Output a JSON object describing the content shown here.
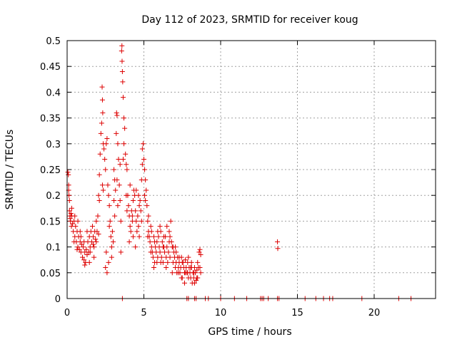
{
  "chart_data": {
    "type": "scatter",
    "title": "Day 112 of 2023, SRMTID for receiver koug",
    "xlabel": "GPS time / hours",
    "ylabel": "SRMTID / TECUs",
    "xlim": [
      0,
      24
    ],
    "ylim": [
      0,
      0.5
    ],
    "grid": true,
    "marker": "+",
    "color": "#dd0000",
    "x_ticks": [
      0,
      5,
      10,
      15,
      20
    ],
    "x_tick_labels": [
      "0",
      "5",
      "10",
      "15",
      "20"
    ],
    "y_ticks": [
      0,
      0.05,
      0.1,
      0.15,
      0.2,
      0.25,
      0.3,
      0.35,
      0.4,
      0.45,
      0.5
    ],
    "y_tick_labels": [
      "0",
      "0.05",
      "0.1",
      "0.15",
      "0.2",
      "0.25",
      "0.3",
      "0.35",
      "0.4",
      "0.45",
      "0.5"
    ],
    "series": [
      {
        "name": "SRMTID",
        "points": [
          [
            0.05,
            0.245
          ],
          [
            0.08,
            0.24
          ],
          [
            0.1,
            0.22
          ],
          [
            0.12,
            0.2
          ],
          [
            0.15,
            0.17
          ],
          [
            0.18,
            0.16
          ],
          [
            0.2,
            0.155
          ],
          [
            0.22,
            0.15
          ],
          [
            0.25,
            0.165
          ],
          [
            0.28,
            0.14
          ],
          [
            0.3,
            0.16
          ],
          [
            0.35,
            0.145
          ],
          [
            0.4,
            0.13
          ],
          [
            0.45,
            0.15
          ],
          [
            0.5,
            0.12
          ],
          [
            0.55,
            0.14
          ],
          [
            0.6,
            0.11
          ],
          [
            0.65,
            0.13
          ],
          [
            0.7,
            0.1
          ],
          [
            0.75,
            0.12
          ],
          [
            0.8,
            0.095
          ],
          [
            0.85,
            0.11
          ],
          [
            0.9,
            0.09
          ],
          [
            0.95,
            0.105
          ],
          [
            1.0,
            0.08
          ],
          [
            1.05,
            0.1
          ],
          [
            1.1,
            0.075
          ],
          [
            1.15,
            0.09
          ],
          [
            1.2,
            0.07
          ],
          [
            1.25,
            0.095
          ],
          [
            1.3,
            0.085
          ],
          [
            1.35,
            0.11
          ],
          [
            1.4,
            0.09
          ],
          [
            1.45,
            0.12
          ],
          [
            1.5,
            0.1
          ],
          [
            1.55,
            0.13
          ],
          [
            1.6,
            0.11
          ],
          [
            1.65,
            0.14
          ],
          [
            1.7,
            0.12
          ],
          [
            1.75,
            0.1
          ],
          [
            1.8,
            0.13
          ],
          [
            1.85,
            0.115
          ],
          [
            1.9,
            0.15
          ],
          [
            1.95,
            0.13
          ],
          [
            2.0,
            0.16
          ],
          [
            2.05,
            0.2
          ],
          [
            2.1,
            0.24
          ],
          [
            2.15,
            0.28
          ],
          [
            2.2,
            0.32
          ],
          [
            2.25,
            0.34
          ],
          [
            2.28,
            0.41
          ],
          [
            2.3,
            0.385
          ],
          [
            2.32,
            0.36
          ],
          [
            2.35,
            0.3
          ],
          [
            2.4,
            0.29
          ],
          [
            2.45,
            0.27
          ],
          [
            2.5,
            0.25
          ],
          [
            2.55,
            0.3
          ],
          [
            2.6,
            0.31
          ],
          [
            2.65,
            0.22
          ],
          [
            2.7,
            0.2
          ],
          [
            2.75,
            0.18
          ],
          [
            2.8,
            0.15
          ],
          [
            2.85,
            0.12
          ],
          [
            2.9,
            0.1
          ],
          [
            2.95,
            0.13
          ],
          [
            3.0,
            0.11
          ],
          [
            3.05,
            0.25
          ],
          [
            3.1,
            0.23
          ],
          [
            3.15,
            0.21
          ],
          [
            3.2,
            0.32
          ],
          [
            3.22,
            0.36
          ],
          [
            3.25,
            0.355
          ],
          [
            3.3,
            0.3
          ],
          [
            3.35,
            0.27
          ],
          [
            3.4,
            0.22
          ],
          [
            3.45,
            0.19
          ],
          [
            3.5,
            0.15
          ],
          [
            3.55,
            0.48
          ],
          [
            3.57,
            0.49
          ],
          [
            3.58,
            0.46
          ],
          [
            3.6,
            0.44
          ],
          [
            3.62,
            0.42
          ],
          [
            3.65,
            0.39
          ],
          [
            3.7,
            0.35
          ],
          [
            3.75,
            0.33
          ],
          [
            3.8,
            0.28
          ],
          [
            3.85,
            0.26
          ],
          [
            3.9,
            0.25
          ],
          [
            3.95,
            0.2
          ],
          [
            4.0,
            0.18
          ],
          [
            4.05,
            0.16
          ],
          [
            4.1,
            0.14
          ],
          [
            4.15,
            0.13
          ],
          [
            4.2,
            0.17
          ],
          [
            4.25,
            0.15
          ],
          [
            4.3,
            0.19
          ],
          [
            4.35,
            0.21
          ],
          [
            4.4,
            0.2
          ],
          [
            4.45,
            0.17
          ],
          [
            4.5,
            0.15
          ],
          [
            4.55,
            0.13
          ],
          [
            4.6,
            0.16
          ],
          [
            4.65,
            0.14
          ],
          [
            4.7,
            0.12
          ],
          [
            4.75,
            0.19
          ],
          [
            4.8,
            0.17
          ],
          [
            4.85,
            0.15
          ],
          [
            4.9,
            0.29
          ],
          [
            4.95,
            0.3
          ],
          [
            5.0,
            0.27
          ],
          [
            5.05,
            0.25
          ],
          [
            5.1,
            0.23
          ],
          [
            5.15,
            0.21
          ],
          [
            5.2,
            0.18
          ],
          [
            5.25,
            0.15
          ],
          [
            5.3,
            0.13
          ],
          [
            5.35,
            0.12
          ],
          [
            5.4,
            0.11
          ],
          [
            5.45,
            0.14
          ],
          [
            5.5,
            0.1
          ],
          [
            5.55,
            0.09
          ],
          [
            5.6,
            0.08
          ],
          [
            5.65,
            0.12
          ],
          [
            5.7,
            0.07
          ],
          [
            5.75,
            0.1
          ],
          [
            5.8,
            0.09
          ],
          [
            5.85,
            0.11
          ],
          [
            5.9,
            0.08
          ],
          [
            5.95,
            0.12
          ],
          [
            6.0,
            0.1
          ],
          [
            6.05,
            0.09
          ],
          [
            6.1,
            0.13
          ],
          [
            6.15,
            0.08
          ],
          [
            6.2,
            0.11
          ],
          [
            6.25,
            0.07
          ],
          [
            6.3,
            0.1
          ],
          [
            6.35,
            0.09
          ],
          [
            6.4,
            0.12
          ],
          [
            6.45,
            0.08
          ],
          [
            6.5,
            0.1
          ],
          [
            6.55,
            0.07
          ],
          [
            6.6,
            0.09
          ],
          [
            6.65,
            0.13
          ],
          [
            6.7,
            0.08
          ],
          [
            6.75,
            0.15
          ],
          [
            6.8,
            0.11
          ],
          [
            6.85,
            0.1
          ],
          [
            6.9,
            0.07
          ],
          [
            6.95,
            0.09
          ],
          [
            7.0,
            0.08
          ],
          [
            7.05,
            0.06
          ],
          [
            7.1,
            0.07
          ],
          [
            7.15,
            0.05
          ],
          [
            7.2,
            0.08
          ],
          [
            7.25,
            0.06
          ],
          [
            7.3,
            0.07
          ],
          [
            7.35,
            0.05
          ],
          [
            7.4,
            0.06
          ],
          [
            7.45,
            0.08
          ],
          [
            7.5,
            0.04
          ],
          [
            7.55,
            0.07
          ],
          [
            7.6,
            0.06
          ],
          [
            7.65,
            0.05
          ],
          [
            7.7,
            0.075
          ],
          [
            7.75,
            0.06
          ],
          [
            7.8,
            0.05
          ],
          [
            7.85,
            0.07
          ],
          [
            7.9,
            0.04
          ],
          [
            7.95,
            0.06
          ],
          [
            8.0,
            0.05
          ],
          [
            8.05,
            0.04
          ],
          [
            8.1,
            0.06
          ],
          [
            8.15,
            0.03
          ],
          [
            8.2,
            0.05
          ],
          [
            8.25,
            0.04
          ],
          [
            8.3,
            0.06
          ],
          [
            8.35,
            0.05
          ],
          [
            8.4,
            0.035
          ],
          [
            8.45,
            0.055
          ],
          [
            8.5,
            0.04
          ],
          [
            8.55,
            0.06
          ],
          [
            8.6,
            0.09
          ],
          [
            8.65,
            0.095
          ],
          [
            8.7,
            0.05
          ],
          [
            13.7,
            0.11
          ],
          [
            13.72,
            0.097
          ],
          [
            0.1,
            0.21
          ],
          [
            0.3,
            0.175
          ],
          [
            0.5,
            0.16
          ],
          [
            0.7,
            0.15
          ],
          [
            0.9,
            0.12
          ],
          [
            1.1,
            0.11
          ],
          [
            1.3,
            0.13
          ],
          [
            1.5,
            0.09
          ],
          [
            1.7,
            0.105
          ],
          [
            1.9,
            0.11
          ],
          [
            2.1,
            0.19
          ],
          [
            2.3,
            0.22
          ],
          [
            2.5,
            0.06
          ],
          [
            2.6,
            0.05
          ],
          [
            2.7,
            0.07
          ],
          [
            2.9,
            0.08
          ],
          [
            3.1,
            0.16
          ],
          [
            3.3,
            0.18
          ],
          [
            3.5,
            0.09
          ],
          [
            3.7,
            0.3
          ],
          [
            3.9,
            0.17
          ],
          [
            4.1,
            0.22
          ],
          [
            4.3,
            0.12
          ],
          [
            4.5,
            0.21
          ],
          [
            4.7,
            0.18
          ],
          [
            4.9,
            0.26
          ],
          [
            5.1,
            0.19
          ],
          [
            5.3,
            0.16
          ],
          [
            5.5,
            0.13
          ],
          [
            5.7,
            0.11
          ],
          [
            5.9,
            0.13
          ],
          [
            6.1,
            0.07
          ],
          [
            6.3,
            0.12
          ],
          [
            6.5,
            0.14
          ],
          [
            6.7,
            0.12
          ],
          [
            6.9,
            0.1
          ],
          [
            7.1,
            0.09
          ],
          [
            7.3,
            0.08
          ],
          [
            7.5,
            0.07
          ],
          [
            7.7,
            0.05
          ],
          [
            7.9,
            0.08
          ],
          [
            8.1,
            0.07
          ],
          [
            8.3,
            0.03
          ],
          [
            8.5,
            0.07
          ],
          [
            8.7,
            0.085
          ],
          [
            0.15,
            0.19
          ],
          [
            0.45,
            0.11
          ],
          [
            0.65,
            0.095
          ],
          [
            0.85,
            0.13
          ],
          [
            1.15,
            0.065
          ],
          [
            1.45,
            0.07
          ],
          [
            1.75,
            0.08
          ],
          [
            2.05,
            0.125
          ],
          [
            2.35,
            0.21
          ],
          [
            2.55,
            0.09
          ],
          [
            2.75,
            0.14
          ],
          [
            3.05,
            0.19
          ],
          [
            3.25,
            0.23
          ],
          [
            3.45,
            0.26
          ],
          [
            3.65,
            0.27
          ],
          [
            3.85,
            0.2
          ],
          [
            4.05,
            0.11
          ],
          [
            4.25,
            0.16
          ],
          [
            4.45,
            0.1
          ],
          [
            4.65,
            0.2
          ],
          [
            4.85,
            0.23
          ],
          [
            5.05,
            0.2
          ],
          [
            5.25,
            0.12
          ],
          [
            5.45,
            0.09
          ],
          [
            5.65,
            0.06
          ],
          [
            5.85,
            0.07
          ],
          [
            6.05,
            0.14
          ],
          [
            6.25,
            0.1
          ],
          [
            6.45,
            0.06
          ],
          [
            6.65,
            0.11
          ],
          [
            6.85,
            0.05
          ],
          [
            7.05,
            0.1
          ],
          [
            7.25,
            0.05
          ],
          [
            7.45,
            0.04
          ],
          [
            7.65,
            0.03
          ],
          [
            7.85,
            0.05
          ],
          [
            8.05,
            0.06
          ],
          [
            8.25,
            0.05
          ],
          [
            8.45,
            0.04
          ],
          [
            8.65,
            0.06
          ],
          [
            3.6,
            0.0
          ],
          [
            7.8,
            0.0
          ],
          [
            7.9,
            0.0
          ],
          [
            8.3,
            0.0
          ],
          [
            8.4,
            0.0
          ],
          [
            9.0,
            0.0
          ],
          [
            9.2,
            0.0
          ],
          [
            10.0,
            0.0
          ],
          [
            10.9,
            0.0
          ],
          [
            11.7,
            0.0
          ],
          [
            12.6,
            0.0
          ],
          [
            12.7,
            0.0
          ],
          [
            12.8,
            0.0
          ],
          [
            13.1,
            0.0
          ],
          [
            13.7,
            0.0
          ],
          [
            13.8,
            0.0
          ],
          [
            15.5,
            0.0
          ],
          [
            16.2,
            0.0
          ],
          [
            16.7,
            0.0
          ],
          [
            17.1,
            0.0
          ],
          [
            17.3,
            0.0
          ],
          [
            19.2,
            0.0
          ],
          [
            21.6,
            0.0
          ],
          [
            22.4,
            0.0
          ]
        ]
      }
    ]
  }
}
